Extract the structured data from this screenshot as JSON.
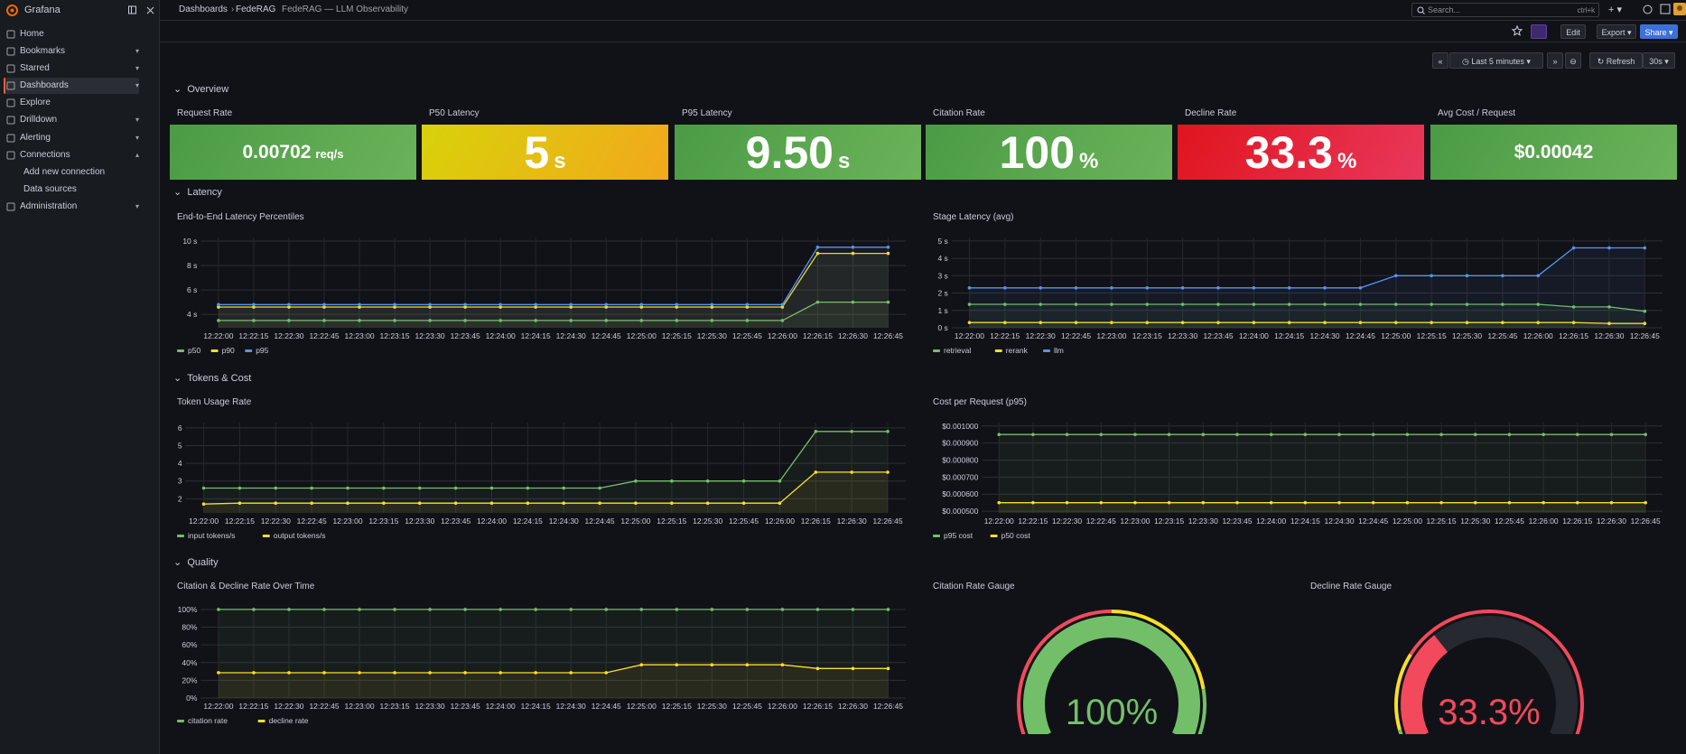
{
  "nav": {
    "brand": "Grafana",
    "items": [
      "Home",
      "Bookmarks",
      "Starred",
      "Dashboards",
      "Explore",
      "Drilldown",
      "Alerting",
      "Connections",
      "Add new connection",
      "Data sources",
      "Administration"
    ]
  },
  "header": {
    "breadcrumbs": [
      "Dashboards",
      "FedeRAG",
      "FedeRAG — LLM Observability"
    ],
    "search": "Search...",
    "shortcut": "ctrl+k"
  },
  "toolbar": {
    "edit": "Edit",
    "export": "Export",
    "share": "Share",
    "time_range": "Last 5 minutes",
    "refresh": "Refresh",
    "interval": "30s"
  },
  "rows": [
    "Overview",
    "Latency",
    "Tokens & Cost",
    "Quality"
  ],
  "stats": [
    {
      "title": "Request Rate",
      "value": "0.00702",
      "unit": "req/s",
      "colors": [
        "#4a9b45",
        "#6cb35a"
      ]
    },
    {
      "title": "P50 Latency",
      "value": "5",
      "unit": "s",
      "colors": [
        "#d8d20a",
        "#f2a81c"
      ]
    },
    {
      "title": "P95 Latency",
      "value": "9.50",
      "unit": "s",
      "colors": [
        "#4a9b45",
        "#6cb35a"
      ]
    },
    {
      "title": "Citation Rate",
      "value": "100",
      "unit": "%",
      "colors": [
        "#4a9b45",
        "#6cb35a"
      ]
    },
    {
      "title": "Decline Rate",
      "value": "33.3",
      "unit": "%",
      "colors": [
        "#e0141e",
        "#e9385c"
      ]
    },
    {
      "title": "Avg Cost / Request",
      "value": "$0.00042",
      "unit": "",
      "colors": [
        "#4a9b45",
        "#6cb35a"
      ]
    }
  ],
  "chart_data": [
    {
      "type": "line",
      "title": "End-to-End Latency Percentiles",
      "x": [
        "12:22:00",
        "12:22:15",
        "12:22:30",
        "12:22:45",
        "12:23:00",
        "12:23:15",
        "12:23:30",
        "12:23:45",
        "12:24:00",
        "12:24:15",
        "12:24:30",
        "12:24:45",
        "12:25:00",
        "12:25:15",
        "12:25:30",
        "12:25:45",
        "12:26:00",
        "12:26:15",
        "12:26:30",
        "12:26:45"
      ],
      "ylim": [
        2.9,
        10.3
      ],
      "yticks": [
        {
          "value": 4,
          "label": "4 s"
        },
        {
          "value": 6,
          "label": "6 s"
        },
        {
          "value": 8,
          "label": "8 s"
        },
        {
          "value": 10,
          "label": "10 s"
        }
      ],
      "grid": true,
      "series": [
        {
          "name": "p50",
          "color": "#73bf69",
          "values": [
            3.5,
            3.5,
            3.5,
            3.5,
            3.5,
            3.5,
            3.5,
            3.5,
            3.5,
            3.5,
            3.5,
            3.5,
            3.5,
            3.5,
            3.5,
            3.5,
            3.5,
            5.0,
            5.0,
            5.0
          ]
        },
        {
          "name": "p90",
          "color": "#fade2a",
          "values": [
            4.6,
            4.6,
            4.6,
            4.6,
            4.6,
            4.6,
            4.6,
            4.6,
            4.6,
            4.6,
            4.6,
            4.6,
            4.6,
            4.6,
            4.6,
            4.6,
            4.6,
            9.0,
            9.0,
            9.0
          ]
        },
        {
          "name": "p95",
          "color": "#5794f2",
          "values": [
            4.8,
            4.8,
            4.8,
            4.8,
            4.8,
            4.8,
            4.8,
            4.8,
            4.8,
            4.8,
            4.8,
            4.8,
            4.8,
            4.8,
            4.8,
            4.8,
            4.8,
            9.5,
            9.5,
            9.5
          ]
        }
      ]
    },
    {
      "type": "line",
      "title": "Stage Latency (avg)",
      "x": [
        "12:22:00",
        "12:22:15",
        "12:22:30",
        "12:22:45",
        "12:23:00",
        "12:23:15",
        "12:23:30",
        "12:23:45",
        "12:24:00",
        "12:24:15",
        "12:24:30",
        "12:24:45",
        "12:25:00",
        "12:25:15",
        "12:25:30",
        "12:25:45",
        "12:26:00",
        "12:26:15",
        "12:26:30",
        "12:26:45"
      ],
      "ylim": [
        0,
        5.2
      ],
      "yticks": [
        {
          "value": 0,
          "label": "0 s"
        },
        {
          "value": 1,
          "label": "1 s"
        },
        {
          "value": 2,
          "label": "2 s"
        },
        {
          "value": 3,
          "label": "3 s"
        },
        {
          "value": 4,
          "label": "4 s"
        },
        {
          "value": 5,
          "label": "5 s"
        }
      ],
      "grid": true,
      "series": [
        {
          "name": "retrieval",
          "color": "#73bf69",
          "values": [
            1.35,
            1.35,
            1.35,
            1.35,
            1.35,
            1.35,
            1.35,
            1.35,
            1.35,
            1.35,
            1.35,
            1.35,
            1.35,
            1.35,
            1.35,
            1.35,
            1.35,
            1.2,
            1.2,
            0.95
          ]
        },
        {
          "name": "rerank",
          "color": "#fade2a",
          "values": [
            0.3,
            0.3,
            0.3,
            0.3,
            0.3,
            0.3,
            0.3,
            0.3,
            0.3,
            0.3,
            0.3,
            0.3,
            0.3,
            0.3,
            0.3,
            0.3,
            0.3,
            0.3,
            0.25,
            0.25
          ]
        },
        {
          "name": "llm",
          "color": "#5794f2",
          "values": [
            2.3,
            2.3,
            2.3,
            2.3,
            2.3,
            2.3,
            2.3,
            2.3,
            2.3,
            2.3,
            2.3,
            2.3,
            3.0,
            3.0,
            3.0,
            3.0,
            3.0,
            4.6,
            4.6,
            4.6
          ]
        }
      ]
    },
    {
      "type": "line",
      "title": "Token Usage Rate",
      "x": [
        "12:22:00",
        "12:22:15",
        "12:22:30",
        "12:22:45",
        "12:23:00",
        "12:23:15",
        "12:23:30",
        "12:23:45",
        "12:24:00",
        "12:24:15",
        "12:24:30",
        "12:24:45",
        "12:25:00",
        "12:25:15",
        "12:25:30",
        "12:25:45",
        "12:26:00",
        "12:26:15",
        "12:26:30",
        "12:26:45"
      ],
      "ylim": [
        1.2,
        6.3
      ],
      "yticks": [
        2,
        3,
        4,
        5,
        6
      ],
      "grid": true,
      "series": [
        {
          "name": "input tokens/s",
          "color": "#73bf69",
          "values": [
            2.6,
            2.6,
            2.6,
            2.6,
            2.6,
            2.6,
            2.6,
            2.6,
            2.6,
            2.6,
            2.6,
            2.6,
            3.0,
            3.0,
            3.0,
            3.0,
            3.0,
            5.8,
            5.8,
            5.8
          ]
        },
        {
          "name": "output tokens/s",
          "color": "#fade2a",
          "values": [
            1.7,
            1.75,
            1.75,
            1.75,
            1.75,
            1.75,
            1.75,
            1.75,
            1.75,
            1.75,
            1.75,
            1.75,
            1.75,
            1.75,
            1.75,
            1.75,
            1.75,
            3.5,
            3.5,
            3.5
          ]
        }
      ]
    },
    {
      "type": "line",
      "title": "Cost per Request (p95)",
      "x": [
        "12:22:00",
        "12:22:15",
        "12:22:30",
        "12:22:45",
        "12:23:00",
        "12:23:15",
        "12:23:30",
        "12:23:45",
        "12:24:00",
        "12:24:15",
        "12:24:30",
        "12:24:45",
        "12:25:00",
        "12:25:15",
        "12:25:30",
        "12:25:45",
        "12:26:00",
        "12:26:15",
        "12:26:30",
        "12:26:45"
      ],
      "ylim": [
        0.00049,
        0.00102
      ],
      "yticks": [
        {
          "value": 0.0005,
          "label": "$0.000500"
        },
        {
          "value": 0.0006,
          "label": "$0.000600"
        },
        {
          "value": 0.0007,
          "label": "$0.000700"
        },
        {
          "value": 0.0008,
          "label": "$0.000800"
        },
        {
          "value": 0.0009,
          "label": "$0.000900"
        },
        {
          "value": 0.001,
          "label": "$0.001000"
        }
      ],
      "grid": true,
      "series": [
        {
          "name": "p95 cost",
          "color": "#73bf69",
          "values": [
            0.00095,
            0.00095,
            0.00095,
            0.00095,
            0.00095,
            0.00095,
            0.00095,
            0.00095,
            0.00095,
            0.00095,
            0.00095,
            0.00095,
            0.00095,
            0.00095,
            0.00095,
            0.00095,
            0.00095,
            0.00095,
            0.00095,
            0.00095
          ]
        },
        {
          "name": "p50 cost",
          "color": "#fade2a",
          "values": [
            0.00055,
            0.00055,
            0.00055,
            0.00055,
            0.00055,
            0.00055,
            0.00055,
            0.00055,
            0.00055,
            0.00055,
            0.00055,
            0.00055,
            0.00055,
            0.00055,
            0.00055,
            0.00055,
            0.00055,
            0.00055,
            0.00055,
            0.00055
          ]
        }
      ]
    },
    {
      "type": "line",
      "title": "Citation & Decline Rate Over Time",
      "x": [
        "12:22:00",
        "12:22:15",
        "12:22:30",
        "12:22:45",
        "12:23:00",
        "12:23:15",
        "12:23:30",
        "12:23:45",
        "12:24:00",
        "12:24:15",
        "12:24:30",
        "12:24:45",
        "12:25:00",
        "12:25:15",
        "12:25:30",
        "12:25:45",
        "12:26:00",
        "12:26:15",
        "12:26:30",
        "12:26:45"
      ],
      "ylim": [
        0,
        103
      ],
      "yticks": [
        {
          "value": 0,
          "label": "0%"
        },
        {
          "value": 20,
          "label": "20%"
        },
        {
          "value": 40,
          "label": "40%"
        },
        {
          "value": 60,
          "label": "60%"
        },
        {
          "value": 80,
          "label": "80%"
        },
        {
          "value": 100,
          "label": "100%"
        }
      ],
      "grid": true,
      "series": [
        {
          "name": "citation rate",
          "color": "#73bf69",
          "values": [
            100,
            100,
            100,
            100,
            100,
            100,
            100,
            100,
            100,
            100,
            100,
            100,
            100,
            100,
            100,
            100,
            100,
            100,
            100,
            100
          ]
        },
        {
          "name": "decline rate",
          "color": "#fade2a",
          "values": [
            28.6,
            28.6,
            28.6,
            28.6,
            28.6,
            28.6,
            28.6,
            28.6,
            28.6,
            28.6,
            28.6,
            28.6,
            37.5,
            37.5,
            37.5,
            37.5,
            37.5,
            33.3,
            33.3,
            33.3
          ]
        }
      ]
    },
    {
      "type": "gauge",
      "title": "Citation Rate Gauge",
      "value": 100,
      "value_label": "100%",
      "min": 0,
      "max": 100,
      "thresholds": [
        {
          "value": 0,
          "color": "#f2495c"
        },
        {
          "value": 50,
          "color": "#fade2a"
        },
        {
          "value": 85,
          "color": "#73bf69"
        }
      ]
    },
    {
      "type": "gauge",
      "title": "Decline Rate Gauge",
      "value": 33.3,
      "value_label": "33.3%",
      "min": 0,
      "max": 100,
      "thresholds": [
        {
          "value": 0,
          "color": "#73bf69"
        },
        {
          "value": 4,
          "color": "#fade2a"
        },
        {
          "value": 25,
          "color": "#f2495c"
        }
      ]
    }
  ]
}
